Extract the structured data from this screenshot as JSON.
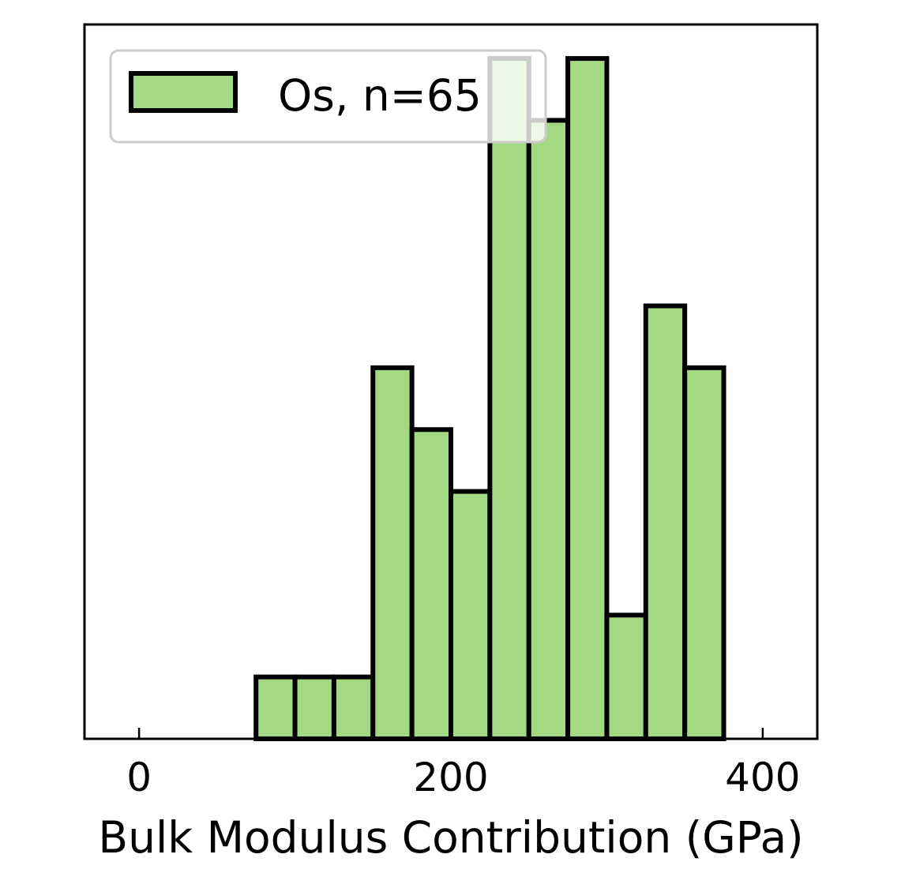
{
  "chart_data": {
    "type": "bar",
    "subtype": "histogram",
    "bin_edges": [
      0,
      25,
      50,
      75,
      100,
      125,
      150,
      175,
      200,
      225,
      250,
      275,
      300,
      325,
      350,
      375,
      400,
      425
    ],
    "counts": [
      0,
      0,
      0,
      1,
      1,
      1,
      6,
      5,
      4,
      11,
      10,
      11,
      2,
      7,
      6,
      0,
      0
    ],
    "series": [
      {
        "name": "Os, n=65",
        "color": "#a3d982",
        "edgecolor": "#000000"
      }
    ],
    "xlabel": "Bulk Modulus Contribution (GPa)",
    "ylabel": "",
    "xlim": [
      -35,
      435
    ],
    "ylim": [
      0,
      11.55
    ],
    "xticks": [
      0,
      200,
      400
    ],
    "xtick_labels": [
      "0",
      "200",
      "400"
    ],
    "yticks_shown": false,
    "grid": false,
    "legend": {
      "placement": "top-left",
      "label": "Os, n=65"
    }
  }
}
